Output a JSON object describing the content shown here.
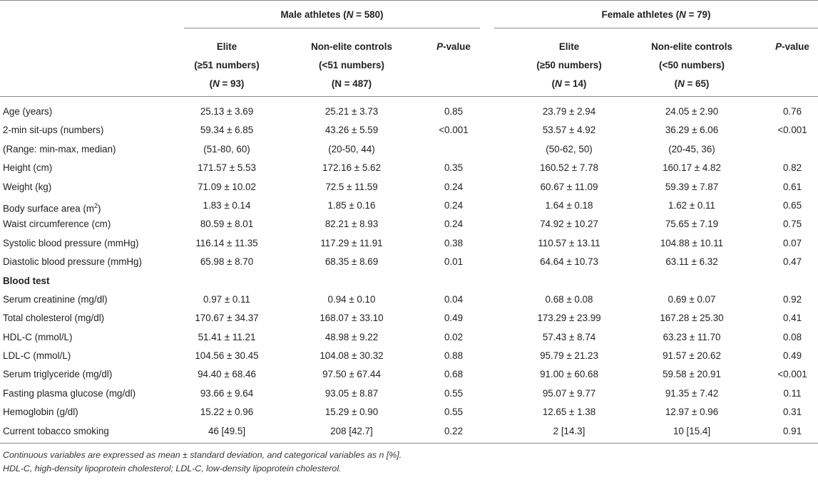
{
  "header": {
    "male_group": {
      "prefix": "Male athletes (",
      "n_var": "N",
      "n_val": " = 580)"
    },
    "female_group": {
      "prefix": "Female athletes (",
      "n_var": "N",
      "n_val": " = 79)"
    },
    "male_elite": {
      "line1": "Elite",
      "line2": "(≥51 numbers)",
      "n_prefix": "(",
      "n_var": "N",
      "n_val": " = 93)"
    },
    "male_controls": {
      "line1": "Non-elite controls",
      "line2": "(<51 numbers)",
      "line3": "(N = 487)"
    },
    "male_p": {
      "p_var": "P",
      "p_suffix": "-value"
    },
    "female_elite": {
      "line1": "Elite",
      "line2": "(≥50 numbers)",
      "n_prefix": "(",
      "n_var": "N",
      "n_val": " = 14)"
    },
    "female_controls": {
      "line1": "Non-elite controls",
      "line2": "(<50 numbers)",
      "n_prefix": "(",
      "n_var": "N",
      "n_val": " = 65)"
    },
    "female_p": {
      "p_var": "P",
      "p_suffix": "-value"
    }
  },
  "rows": [
    {
      "label": "Age (years)",
      "values": [
        "25.13 ± 3.69",
        "25.21 ± 3.73",
        "0.85",
        "23.79 ± 2.94",
        "24.05 ± 2.90",
        "0.76"
      ]
    },
    {
      "label": "2-min sit-ups (numbers)",
      "values": [
        "59.34 ± 6.85",
        "43.26 ± 5.59",
        "<0.001",
        "53.57 ± 4.92",
        "36.29 ± 6.06",
        "<0.001"
      ]
    },
    {
      "label": "(Range: min-max, median)",
      "values": [
        "(51-80, 60)",
        "(20-50, 44)",
        "",
        "(50-62, 50)",
        "(20-45, 36)",
        ""
      ]
    },
    {
      "label": "Height (cm)",
      "values": [
        "171.57 ± 5.53",
        "172.16 ± 5.62",
        "0.35",
        "160.52 ± 7.78",
        "160.17 ± 4.82",
        "0.82"
      ]
    },
    {
      "label": "Weight (kg)",
      "values": [
        "71.09 ± 10.02",
        "72.5 ± 11.59",
        "0.24",
        "60.67 ± 11.09",
        "59.39 ± 7.87",
        "0.61"
      ]
    },
    {
      "label": "Body surface area (m",
      "label_sup": "2",
      "label_tail": ")",
      "values": [
        "1.83 ± 0.14",
        "1.85 ± 0.16",
        "0.24",
        "1.64 ± 0.18",
        "1.62 ± 0.11",
        "0.65"
      ]
    },
    {
      "label": "Waist circumference (cm)",
      "values": [
        "80.59 ± 8.01",
        "82.21 ± 8.93",
        "0.24",
        "74.92 ± 10.27",
        "75.65 ± 7.19",
        "0.75"
      ]
    },
    {
      "label": "Systolic blood pressure (mmHg)",
      "values": [
        "116.14 ± 11.35",
        "117.29 ± 11.91",
        "0.38",
        "110.57 ± 13.11",
        "104.88 ± 10.11",
        "0.07"
      ]
    },
    {
      "label": "Diastolic blood pressure (mmHg)",
      "values": [
        "65.98 ± 8.70",
        "68.35 ± 8.69",
        "0.01",
        "64.64 ± 10.73",
        "63.11 ± 6.32",
        "0.47"
      ]
    },
    {
      "label": "Blood test",
      "section": true,
      "values": [
        "",
        "",
        "",
        "",
        "",
        ""
      ]
    },
    {
      "label": "Serum creatinine (mg/dl)",
      "values": [
        "0.97 ± 0.11",
        "0.94 ± 0.10",
        "0.04",
        "0.68 ± 0.08",
        "0.69 ± 0.07",
        "0.92"
      ]
    },
    {
      "label": "Total cholesterol (mg/dl)",
      "values": [
        "170.67 ± 34.37",
        "168.07 ± 33.10",
        "0.49",
        "173.29 ± 23.99",
        "167.28 ± 25.30",
        "0.41"
      ]
    },
    {
      "label": "HDL-C (mmol/L)",
      "values": [
        "51.41 ± 11.21",
        "48.98 ± 9.22",
        "0.02",
        "57.43 ± 8.74",
        "63.23 ± 11.70",
        "0.08"
      ]
    },
    {
      "label": "LDL-C (mmol/L)",
      "values": [
        "104.56 ± 30.45",
        "104.08 ± 30.32",
        "0.88",
        "95.79 ± 21.23",
        "91.57 ± 20.62",
        "0.49"
      ]
    },
    {
      "label": "Serum triglyceride (mg/dl)",
      "values": [
        "94.40 ± 68.46",
        "97.50 ± 67.44",
        "0.68",
        "91.00 ± 60.68",
        "59.58 ± 20.91",
        "<0.001"
      ]
    },
    {
      "label": "Fasting plasma glucose (mg/dl)",
      "values": [
        "93.66 ± 9.64",
        "93.05 ± 8.87",
        "0.55",
        "95.07 ± 9.77",
        "91.35 ± 7.42",
        "0.11"
      ]
    },
    {
      "label": "Hemoglobin (g/dl)",
      "values": [
        "15.22 ± 0.96",
        "15.29 ± 0.90",
        "0.55",
        "12.65 ± 1.38",
        "12.97 ± 0.96",
        "0.31"
      ]
    },
    {
      "label": "Current tobacco smoking",
      "values": [
        "46 [49.5]",
        "208 [42.7]",
        "0.22",
        "2 [14.3]",
        "10 [15.4]",
        "0.91"
      ]
    }
  ],
  "footnotes": {
    "line1": "Continuous variables are expressed as mean ± standard deviation, and categorical variables as n [%].",
    "line2": "HDL-C, high-density lipoprotein cholesterol; LDL-C, low-density lipoprotein cholesterol."
  }
}
